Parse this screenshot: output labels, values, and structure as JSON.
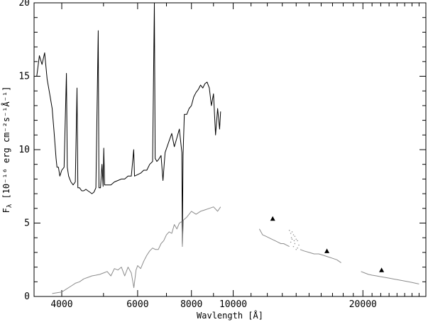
{
  "chart_data": {
    "type": "line",
    "xlabel": "Wavlength [Å]",
    "ylabel_main": "F",
    "ylabel_sub": "λ",
    "ylabel_rest": " [10⁻¹⁶ erg cm⁻²s⁻¹Å⁻¹]",
    "x_scale": "log",
    "xlim": [
      3450,
      28000
    ],
    "ylim": [
      0,
      20
    ],
    "x_ticks": [
      {
        "value": 4000,
        "label": "4000"
      },
      {
        "value": 6000,
        "label": "6000"
      },
      {
        "value": 8000,
        "label": "8000"
      },
      {
        "value": 10000,
        "label": "10000"
      },
      {
        "value": 20000,
        "label": "20000"
      }
    ],
    "y_ticks": [
      {
        "value": 0,
        "label": "0"
      },
      {
        "value": 5,
        "label": "5"
      },
      {
        "value": 10,
        "label": "10"
      },
      {
        "value": 15,
        "label": "15"
      },
      {
        "value": 20,
        "label": "20"
      }
    ],
    "grid": false,
    "legend": "none",
    "series": [
      {
        "style": "line",
        "color": "#000000",
        "points": [
          [
            3500,
            15.0
          ],
          [
            3550,
            16.4
          ],
          [
            3600,
            15.8
          ],
          [
            3650,
            16.6
          ],
          [
            3700,
            14.8
          ],
          [
            3750,
            13.8
          ],
          [
            3800,
            12.8
          ],
          [
            3840,
            11.2
          ],
          [
            3880,
            9.4
          ],
          [
            3900,
            8.8
          ],
          [
            3930,
            8.8
          ],
          [
            3960,
            8.2
          ],
          [
            4000,
            8.6
          ],
          [
            4050,
            8.8
          ],
          [
            4101,
            15.2
          ],
          [
            4120,
            8.8
          ],
          [
            4150,
            8.2
          ],
          [
            4200,
            7.8
          ],
          [
            4250,
            7.6
          ],
          [
            4300,
            7.8
          ],
          [
            4340,
            14.2
          ],
          [
            4360,
            7.4
          ],
          [
            4400,
            7.4
          ],
          [
            4450,
            7.2
          ],
          [
            4500,
            7.2
          ],
          [
            4550,
            7.3
          ],
          [
            4600,
            7.2
          ],
          [
            4650,
            7.1
          ],
          [
            4700,
            7.0
          ],
          [
            4750,
            7.1
          ],
          [
            4800,
            7.4
          ],
          [
            4861,
            18.1
          ],
          [
            4880,
            7.4
          ],
          [
            4920,
            7.4
          ],
          [
            4959,
            9.0
          ],
          [
            4990,
            7.5
          ],
          [
            5007,
            10.1
          ],
          [
            5030,
            7.6
          ],
          [
            5100,
            7.6
          ],
          [
            5200,
            7.6
          ],
          [
            5300,
            7.8
          ],
          [
            5400,
            7.9
          ],
          [
            5500,
            8.0
          ],
          [
            5600,
            8.0
          ],
          [
            5700,
            8.2
          ],
          [
            5800,
            8.2
          ],
          [
            5876,
            10.0
          ],
          [
            5900,
            8.2
          ],
          [
            6000,
            8.3
          ],
          [
            6100,
            8.4
          ],
          [
            6200,
            8.6
          ],
          [
            6300,
            8.6
          ],
          [
            6400,
            9.0
          ],
          [
            6500,
            9.2
          ],
          [
            6563,
            20.0
          ],
          [
            6590,
            9.4
          ],
          [
            6650,
            9.2
          ],
          [
            6700,
            9.3
          ],
          [
            6800,
            9.6
          ],
          [
            6870,
            7.9
          ],
          [
            6950,
            9.8
          ],
          [
            7100,
            10.6
          ],
          [
            7200,
            11.1
          ],
          [
            7300,
            10.2
          ],
          [
            7400,
            10.8
          ],
          [
            7500,
            11.4
          ],
          [
            7600,
            9.8
          ],
          [
            7620,
            3.6
          ],
          [
            7650,
            9.6
          ],
          [
            7700,
            12.4
          ],
          [
            7800,
            12.4
          ],
          [
            7900,
            12.8
          ],
          [
            8000,
            13.0
          ],
          [
            8100,
            13.6
          ],
          [
            8200,
            13.9
          ],
          [
            8300,
            14.1
          ],
          [
            8400,
            14.4
          ],
          [
            8500,
            14.2
          ],
          [
            8600,
            14.5
          ],
          [
            8700,
            14.6
          ],
          [
            8800,
            14.2
          ],
          [
            8900,
            13.0
          ],
          [
            9000,
            13.8
          ],
          [
            9100,
            11.0
          ],
          [
            9200,
            12.8
          ],
          [
            9300,
            11.4
          ],
          [
            9350,
            12.6
          ]
        ]
      },
      {
        "style": "line",
        "color": "#8c8c8c",
        "points": [
          [
            3800,
            0.2
          ],
          [
            3900,
            0.25
          ],
          [
            4000,
            0.3
          ],
          [
            4100,
            0.5
          ],
          [
            4200,
            0.7
          ],
          [
            4300,
            0.9
          ],
          [
            4400,
            1.0
          ],
          [
            4500,
            1.2
          ],
          [
            4600,
            1.3
          ],
          [
            4700,
            1.4
          ],
          [
            4800,
            1.45
          ],
          [
            4900,
            1.5
          ],
          [
            5000,
            1.6
          ],
          [
            5100,
            1.7
          ],
          [
            5200,
            1.4
          ],
          [
            5300,
            1.9
          ],
          [
            5400,
            1.8
          ],
          [
            5500,
            2.0
          ],
          [
            5600,
            1.4
          ],
          [
            5700,
            2.0
          ],
          [
            5800,
            1.6
          ],
          [
            5880,
            0.6
          ],
          [
            5950,
            1.8
          ],
          [
            6000,
            2.1
          ],
          [
            6100,
            1.9
          ],
          [
            6200,
            2.4
          ],
          [
            6300,
            2.8
          ],
          [
            6400,
            3.1
          ],
          [
            6500,
            3.3
          ],
          [
            6600,
            3.2
          ],
          [
            6700,
            3.2
          ],
          [
            6800,
            3.6
          ],
          [
            6900,
            3.8
          ],
          [
            7000,
            4.2
          ],
          [
            7100,
            4.4
          ],
          [
            7200,
            4.3
          ],
          [
            7300,
            4.9
          ],
          [
            7400,
            4.6
          ],
          [
            7500,
            5.0
          ],
          [
            7600,
            5.1
          ],
          [
            7620,
            3.4
          ],
          [
            7660,
            5.2
          ],
          [
            7800,
            5.4
          ],
          [
            8000,
            5.8
          ],
          [
            8200,
            5.6
          ],
          [
            8400,
            5.8
          ],
          [
            8600,
            5.9
          ],
          [
            8800,
            6.0
          ],
          [
            9000,
            6.1
          ],
          [
            9200,
            5.8
          ],
          [
            9350,
            6.1
          ]
        ]
      },
      {
        "style": "line",
        "color": "#8c8c8c",
        "points": [
          [
            11500,
            4.6
          ],
          [
            11700,
            4.2
          ],
          [
            11900,
            4.1
          ],
          [
            12100,
            4.0
          ],
          [
            12300,
            3.9
          ],
          [
            12500,
            3.8
          ],
          [
            12700,
            3.7
          ],
          [
            12900,
            3.6
          ],
          [
            13100,
            3.6
          ],
          [
            13300,
            3.5
          ],
          [
            13500,
            3.4
          ]
        ]
      },
      {
        "style": "line",
        "color": "#8c8c8c",
        "points": [
          [
            14300,
            3.2
          ],
          [
            14600,
            3.1
          ],
          [
            15000,
            3.0
          ],
          [
            15400,
            2.9
          ],
          [
            15800,
            2.9
          ],
          [
            16200,
            2.8
          ],
          [
            16600,
            2.7
          ],
          [
            17000,
            2.6
          ],
          [
            17400,
            2.5
          ],
          [
            17800,
            2.3
          ]
        ]
      },
      {
        "style": "scatter",
        "color": "#9a9a9a",
        "points": [
          [
            13500,
            4.5
          ],
          [
            13600,
            4.3
          ],
          [
            13700,
            4.4
          ],
          [
            13800,
            4.2
          ],
          [
            13900,
            4.1
          ],
          [
            14000,
            3.9
          ],
          [
            14100,
            3.8
          ],
          [
            13600,
            3.7
          ],
          [
            13800,
            3.4
          ],
          [
            14000,
            3.2
          ],
          [
            14200,
            3.5
          ],
          [
            13700,
            3.9
          ],
          [
            13900,
            3.6
          ],
          [
            14100,
            3.3
          ],
          [
            13650,
            4.0
          ],
          [
            13850,
            3.8
          ]
        ]
      },
      {
        "style": "line",
        "color": "#8c8c8c",
        "points": [
          [
            19800,
            1.7
          ],
          [
            20200,
            1.6
          ],
          [
            20600,
            1.5
          ],
          [
            21000,
            1.45
          ],
          [
            21500,
            1.4
          ],
          [
            22000,
            1.35
          ],
          [
            22500,
            1.3
          ],
          [
            23000,
            1.25
          ],
          [
            23500,
            1.2
          ],
          [
            24000,
            1.15
          ],
          [
            24500,
            1.1
          ],
          [
            25000,
            1.05
          ],
          [
            25500,
            1.0
          ],
          [
            26000,
            0.95
          ],
          [
            26500,
            0.9
          ],
          [
            27000,
            0.85
          ]
        ]
      },
      {
        "style": "triangles",
        "color": "#000000",
        "points": [
          [
            12350,
            5.3
          ],
          [
            16500,
            3.1
          ],
          [
            22100,
            1.8
          ]
        ]
      }
    ]
  }
}
